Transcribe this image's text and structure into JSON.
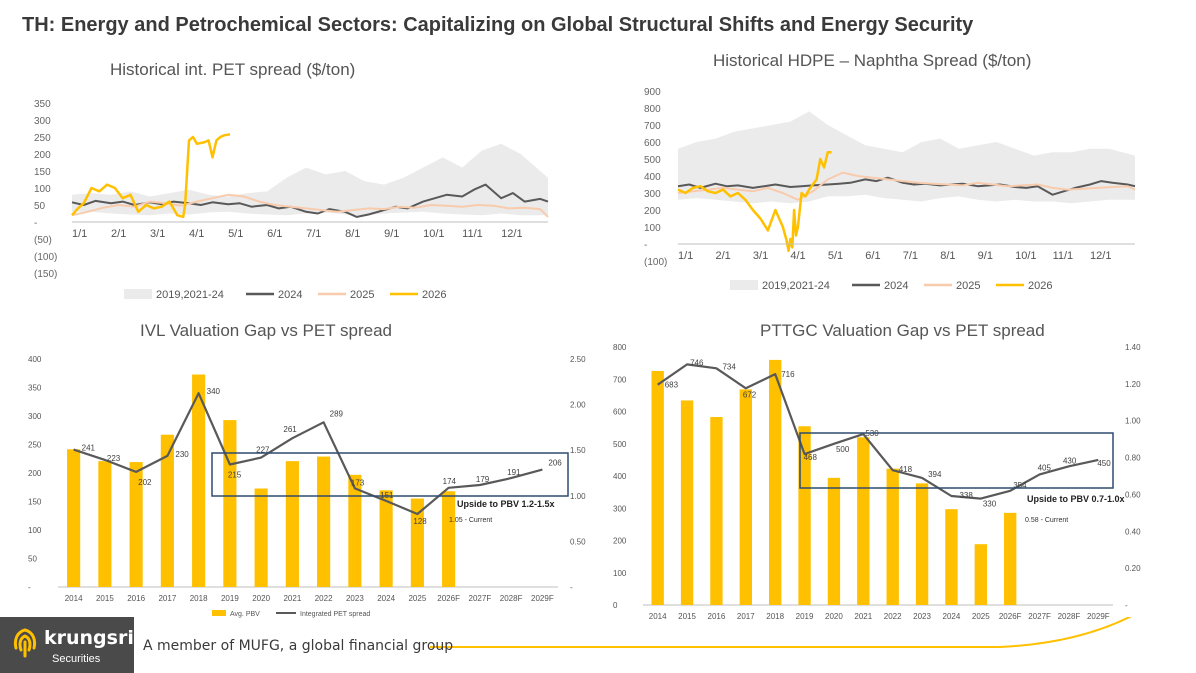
{
  "page": {
    "title": "TH: Energy and Petrochemical Sectors: Capitalizing on Global Structural Shifts and Energy Security",
    "footer_text": "A member of MUFG, a global financial group",
    "brand": {
      "name": "krungsri",
      "sub": "Securities"
    },
    "colors": {
      "gold": "#FFC000",
      "dark_line": "#595959",
      "band": "#EBEBEB",
      "peach": "#F8CBAD",
      "box": "#2F4C6E",
      "bar": "#FFC000"
    }
  },
  "chart_data": [
    {
      "type": "line",
      "title": "Historical int. PET spread ($/ton)",
      "x_tick_labels": [
        "1/1",
        "2/1",
        "3/1",
        "4/1",
        "5/1",
        "6/1",
        "7/1",
        "8/1",
        "9/1",
        "10/1",
        "11/1",
        "12/1"
      ],
      "y_tick_labels": [
        "350",
        "300",
        "250",
        "200",
        "150",
        "100",
        "50",
        "-",
        "(50)",
        "(100)",
        "(150)"
      ],
      "ylim": [
        -150,
        350
      ],
      "legend": [
        "2019,2021-24",
        "2024",
        "2025",
        "2026"
      ],
      "series": [
        {
          "name": "2019,2021-24",
          "kind": "band",
          "x": [
            0,
            0.5,
            1,
            1.5,
            2,
            2.5,
            3,
            3.5,
            4,
            4.5,
            5,
            5.5,
            6,
            6.5,
            7,
            7.5,
            8,
            8.5,
            9,
            9.5,
            10,
            10.5,
            11,
            11.5,
            12.2
          ],
          "low": [
            30,
            30,
            25,
            22,
            20,
            25,
            22,
            28,
            30,
            25,
            22,
            20,
            25,
            28,
            22,
            20,
            25,
            28,
            30,
            25,
            22,
            20,
            25,
            20,
            20
          ],
          "high": [
            80,
            85,
            80,
            90,
            75,
            85,
            95,
            80,
            75,
            85,
            90,
            130,
            160,
            140,
            150,
            120,
            110,
            130,
            160,
            190,
            160,
            210,
            230,
            200,
            130
          ]
        },
        {
          "name": "2024",
          "x": [
            0,
            0.3,
            0.6,
            1,
            1.3,
            1.6,
            2,
            2.3,
            2.6,
            3,
            3.3,
            3.6,
            4,
            4.3,
            4.6,
            5,
            5.3,
            5.6,
            6,
            6.3,
            6.6,
            7,
            7.3,
            7.6,
            8,
            8.3,
            8.6,
            9,
            9.3,
            9.6,
            10,
            10.3,
            10.6,
            11,
            11.3,
            11.6,
            12,
            12.2
          ],
          "y": [
            58,
            50,
            62,
            55,
            60,
            50,
            58,
            52,
            60,
            55,
            50,
            58,
            52,
            55,
            45,
            50,
            40,
            45,
            30,
            25,
            38,
            30,
            15,
            22,
            35,
            45,
            40,
            60,
            70,
            80,
            75,
            95,
            110,
            70,
            85,
            60,
            68,
            60
          ]
        },
        {
          "name": "2025",
          "x": [
            0,
            0.4,
            0.8,
            1.2,
            1.6,
            2,
            2.4,
            2.8,
            3.2,
            3.6,
            4,
            4.4,
            4.8,
            5.2,
            5.6,
            6,
            6.4,
            6.8,
            7.2,
            7.6,
            8,
            8.4,
            8.8,
            9.2,
            9.6,
            10,
            10.4,
            10.8,
            11.2,
            11.6,
            12,
            12.2
          ],
          "y": [
            20,
            30,
            42,
            50,
            45,
            60,
            55,
            48,
            60,
            70,
            80,
            75,
            60,
            50,
            45,
            40,
            35,
            30,
            35,
            40,
            38,
            45,
            42,
            50,
            48,
            45,
            50,
            48,
            40,
            42,
            38,
            15
          ]
        },
        {
          "name": "2026",
          "x": [
            0,
            0.15,
            0.3,
            0.5,
            0.7,
            0.9,
            1.1,
            1.3,
            1.5,
            1.7,
            1.9,
            2.1,
            2.3,
            2.5,
            2.7,
            2.85,
            2.9,
            3,
            3.1,
            3.2,
            3.4,
            3.5,
            3.6,
            3.7,
            3.8,
            3.9,
            4.05
          ],
          "y": [
            20,
            40,
            55,
            100,
            90,
            110,
            100,
            70,
            80,
            30,
            50,
            40,
            45,
            60,
            20,
            15,
            50,
            240,
            250,
            230,
            235,
            240,
            190,
            240,
            250,
            255,
            258
          ]
        }
      ]
    },
    {
      "type": "line",
      "title": "Historical HDPE – Naphtha Spread ($/ton)",
      "x_tick_labels": [
        "1/1",
        "2/1",
        "3/1",
        "4/1",
        "5/1",
        "6/1",
        "7/1",
        "8/1",
        "9/1",
        "10/1",
        "11/1",
        "12/1"
      ],
      "y_tick_labels": [
        "900",
        "800",
        "700",
        "600",
        "500",
        "400",
        "300",
        "200",
        "100",
        "-",
        "(100)"
      ],
      "ylim": [
        -100,
        900
      ],
      "legend": [
        "2019,2021-24",
        "2024",
        "2025",
        "2026"
      ],
      "series": [
        {
          "name": "2019,2021-24",
          "kind": "band",
          "x": [
            0,
            0.5,
            1,
            1.5,
            2,
            2.5,
            3,
            3.5,
            4,
            4.5,
            5,
            5.5,
            6,
            6.5,
            7,
            7.5,
            8,
            8.5,
            9,
            9.5,
            10,
            10.5,
            11,
            11.5,
            12.2
          ],
          "low": [
            260,
            270,
            260,
            250,
            240,
            250,
            240,
            250,
            280,
            280,
            290,
            270,
            260,
            250,
            270,
            280,
            260,
            250,
            260,
            250,
            250,
            240,
            250,
            260,
            260
          ],
          "high": [
            560,
            600,
            620,
            660,
            680,
            700,
            720,
            780,
            700,
            640,
            580,
            560,
            540,
            600,
            620,
            560,
            580,
            600,
            560,
            520,
            540,
            540,
            560,
            560,
            520
          ]
        },
        {
          "name": "2024",
          "x": [
            0,
            0.3,
            0.6,
            1,
            1.3,
            1.6,
            2,
            2.3,
            2.6,
            3,
            3.3,
            3.6,
            4,
            4.3,
            4.6,
            5,
            5.3,
            5.6,
            6,
            6.3,
            6.6,
            7,
            7.3,
            7.6,
            8,
            8.3,
            8.6,
            9,
            9.3,
            9.6,
            10,
            10.3,
            10.6,
            11,
            11.3,
            11.6,
            12,
            12.2
          ],
          "y": [
            340,
            350,
            330,
            355,
            340,
            345,
            330,
            340,
            350,
            335,
            340,
            345,
            350,
            355,
            360,
            380,
            370,
            390,
            360,
            350,
            355,
            345,
            350,
            355,
            340,
            345,
            350,
            335,
            330,
            340,
            290,
            310,
            330,
            350,
            370,
            360,
            350,
            340
          ]
        },
        {
          "name": "2025",
          "x": [
            0,
            0.4,
            0.8,
            1.2,
            1.6,
            2,
            2.4,
            2.8,
            3.2,
            3.6,
            4,
            4.4,
            4.8,
            5.2,
            5.6,
            6,
            6.4,
            6.8,
            7.2,
            7.6,
            8,
            8.4,
            8.8,
            9.2,
            9.6,
            10,
            10.4,
            10.8,
            11.2,
            11.6,
            12,
            12.2
          ],
          "y": [
            300,
            310,
            320,
            330,
            320,
            310,
            330,
            300,
            260,
            310,
            380,
            420,
            400,
            390,
            380,
            370,
            360,
            355,
            350,
            345,
            360,
            350,
            340,
            345,
            350,
            330,
            320,
            325,
            330,
            335,
            340,
            320
          ]
        },
        {
          "name": "2026",
          "x": [
            0,
            0.2,
            0.4,
            0.6,
            0.8,
            1,
            1.2,
            1.4,
            1.6,
            1.8,
            2,
            2.2,
            2.4,
            2.6,
            2.8,
            2.9,
            2.95,
            3.0,
            3.05,
            3.1,
            3.15,
            3.2,
            3.3,
            3.4,
            3.5,
            3.7,
            3.8,
            3.9,
            4.0,
            4.1
          ],
          "y": [
            320,
            300,
            330,
            340,
            310,
            300,
            320,
            280,
            300,
            260,
            200,
            150,
            80,
            200,
            100,
            20,
            -40,
            30,
            -20,
            200,
            50,
            100,
            300,
            280,
            320,
            380,
            500,
            450,
            540,
            540
          ]
        }
      ]
    },
    {
      "type": "bar",
      "title": "IVL Valuation Gap vs PET spread",
      "categories": [
        "2014",
        "2015",
        "2016",
        "2017",
        "2018",
        "2019",
        "2020",
        "2021",
        "2022",
        "2023",
        "2024",
        "2025",
        "2026F",
        "2027F",
        "2028F",
        "2029F"
      ],
      "left_ticks": [
        "400",
        "350",
        "300",
        "250",
        "200",
        "150",
        "100",
        "50",
        "-"
      ],
      "right_ticks": [
        "2.50",
        "2.00",
        "1.50",
        "1.00",
        "0.50",
        "-"
      ],
      "ylim_left": [
        0,
        400
      ],
      "ylim_right": [
        0,
        2.5
      ],
      "series": [
        {
          "name": "Avg. PBV",
          "type": "bar",
          "values": [
            1.51,
            1.38,
            1.37,
            1.67,
            2.33,
            1.83,
            1.08,
            1.38,
            1.43,
            1.23,
            1.06,
            0.97,
            1.05,
            null,
            null,
            null
          ]
        },
        {
          "name": "Integrated PET spread",
          "type": "line",
          "values": [
            241,
            223,
            202,
            230,
            340,
            215,
            227,
            261,
            289,
            173,
            151,
            128,
            174,
            179,
            191,
            206
          ]
        }
      ],
      "data_labels": [
        "241",
        "223",
        "202",
        "230",
        "340",
        "215",
        "227",
        "261",
        "289",
        "173",
        "151",
        "128",
        "174",
        "179",
        "191",
        "206"
      ],
      "annotations": {
        "box_text": "Upside to PBV 1.2-1.5x",
        "current_text": "1.05 - Current"
      }
    },
    {
      "type": "bar",
      "title": "PTTGC Valuation Gap vs PET spread",
      "categories": [
        "2014",
        "2015",
        "2016",
        "2017",
        "2018",
        "2019",
        "2020",
        "2021",
        "2022",
        "2023",
        "2024",
        "2025",
        "2026F",
        "2027F",
        "2028F",
        "2029F"
      ],
      "left_ticks": [
        "800",
        "700",
        "600",
        "500",
        "400",
        "300",
        "200",
        "100",
        "0"
      ],
      "right_ticks": [
        "1.40",
        "1.20",
        "1.00",
        "0.80",
        "0.60",
        "0.40",
        "0.20",
        "-"
      ],
      "ylim_left": [
        0,
        800
      ],
      "ylim_right": [
        0,
        1.4
      ],
      "series": [
        {
          "name": "Avg PBV",
          "type": "bar",
          "values": [
            1.27,
            1.11,
            1.02,
            1.17,
            1.33,
            0.97,
            0.69,
            0.91,
            0.74,
            0.66,
            0.52,
            0.33,
            0.5,
            null,
            null,
            null
          ]
        },
        {
          "name": "HDPE-N spread ($/ton)",
          "type": "line",
          "values": [
            683,
            746,
            734,
            672,
            716,
            468,
            500,
            530,
            418,
            394,
            338,
            330,
            354,
            405,
            430,
            450
          ]
        }
      ],
      "data_labels": [
        "683",
        "746",
        "734",
        "672",
        "716",
        "468",
        "500",
        "530",
        "418",
        "394",
        "338",
        "330",
        "354",
        "405",
        "430",
        "450"
      ],
      "annotations": {
        "box_text": "Upside to PBV 0.7-1.0x",
        "current_text": "0.58 - Current"
      }
    }
  ]
}
